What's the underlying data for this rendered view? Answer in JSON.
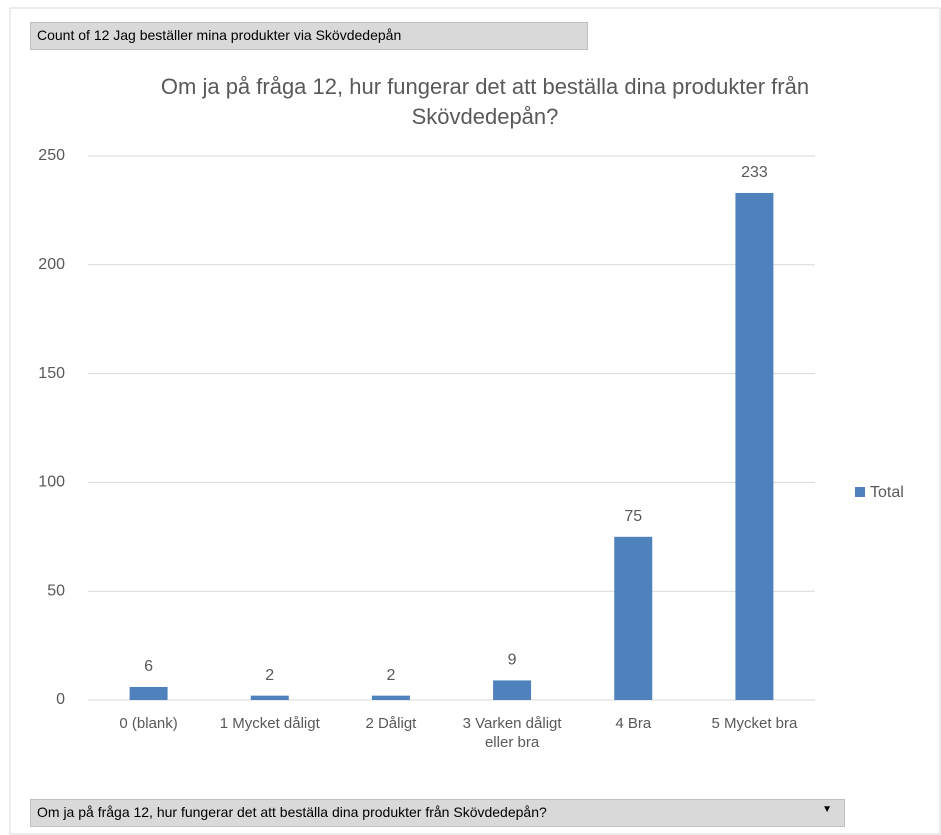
{
  "pivot": {
    "value_field": "Count of 12 Jag beställer mina produkter via Skövdedepån",
    "axis_field": "Om ja på fråga 12, hur fungerar det att beställa dina produkter från Skövdedepån?"
  },
  "chart_data": {
    "type": "bar",
    "title": "Om ja på fråga 12, hur fungerar det att beställa dina produkter från Skövdedepån?",
    "categories": [
      "0 (blank)",
      "1 Mycket dåligt",
      "2 Dåligt",
      "3 Varken dåligt eller bra",
      "4 Bra",
      "5 Mycket bra"
    ],
    "series": [
      {
        "name": "Total",
        "color": "#4f81bd",
        "values": [
          6,
          2,
          2,
          9,
          75,
          233
        ]
      }
    ],
    "ylim": [
      0,
      250
    ],
    "yticks": [
      0,
      50,
      100,
      150,
      200,
      250
    ],
    "grid": true,
    "legend": "right"
  }
}
